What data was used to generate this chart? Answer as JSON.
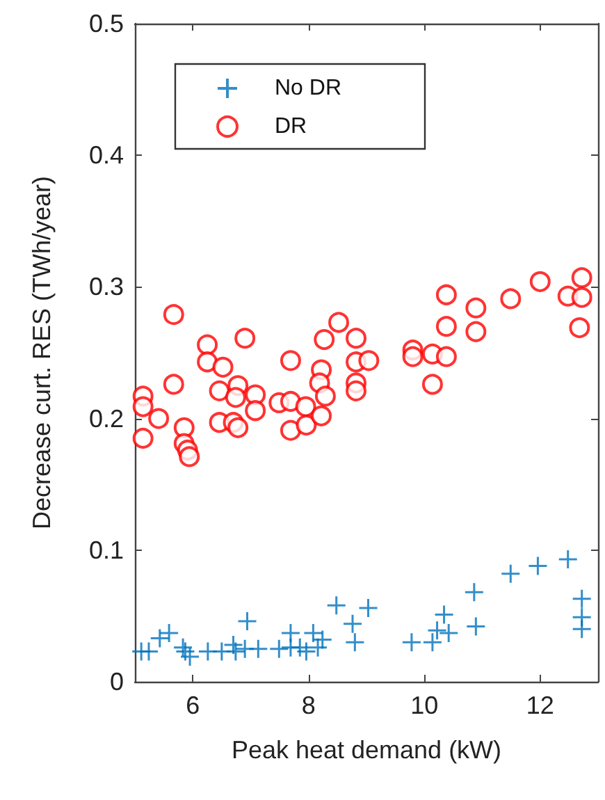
{
  "chart_data": {
    "type": "scatter",
    "xlabel": "Peak heat demand (kW)",
    "ylabel": "Decrease curt. RES (TWh/year)",
    "xlim": [
      5,
      13
    ],
    "xticks": [
      6,
      8,
      10,
      12
    ],
    "ylim": [
      0,
      0.5
    ],
    "yticks": [
      0,
      0.1,
      0.2,
      0.3,
      0.4,
      0.5
    ],
    "grid": false,
    "legend": "top left",
    "series": [
      {
        "name": "No DR",
        "color": "#0072bd",
        "marker": "cross",
        "x": [
          5.11,
          5.24,
          5.59,
          5.43,
          5.87,
          5.95,
          5.83,
          6.26,
          6.5,
          6.7,
          6.74,
          6.94,
          6.9,
          7.13,
          7.49,
          7.69,
          7.69,
          7.85,
          7.96,
          8.08,
          8.16,
          8.24,
          8.48,
          8.76,
          8.8,
          9.03,
          9.78,
          10.14,
          10.22,
          10.34,
          10.42,
          10.86,
          10.89,
          11.49,
          11.96,
          12.48,
          12.72,
          12.72,
          12.72
        ],
        "values": [
          0.023,
          0.023,
          0.037,
          0.033,
          0.023,
          0.019,
          0.026,
          0.023,
          0.023,
          0.028,
          0.023,
          0.046,
          0.025,
          0.025,
          0.025,
          0.037,
          0.026,
          0.026,
          0.023,
          0.037,
          0.026,
          0.032,
          0.058,
          0.044,
          0.03,
          0.056,
          0.03,
          0.03,
          0.039,
          0.051,
          0.037,
          0.068,
          0.042,
          0.082,
          0.088,
          0.093,
          0.063,
          0.049,
          0.04
        ]
      },
      {
        "name": "DR",
        "color": "#ff0000",
        "marker": "circle",
        "x": [
          5.14,
          5.14,
          5.14,
          5.41,
          5.67,
          5.67,
          5.85,
          5.85,
          5.91,
          5.94,
          6.25,
          6.25,
          6.52,
          6.46,
          6.46,
          6.7,
          6.78,
          6.78,
          6.9,
          6.74,
          7.08,
          7.08,
          7.49,
          7.69,
          7.69,
          7.69,
          7.95,
          7.96,
          8.22,
          8.19,
          8.29,
          8.22,
          8.27,
          8.52,
          8.82,
          8.82,
          8.82,
          8.82,
          9.04,
          9.8,
          9.8,
          10.14,
          10.14,
          10.38,
          10.38,
          10.38,
          10.89,
          10.89,
          11.49,
          12.0,
          12.48,
          12.72,
          12.72,
          12.68
        ],
        "values": [
          0.217,
          0.209,
          0.185,
          0.2,
          0.279,
          0.226,
          0.193,
          0.181,
          0.176,
          0.171,
          0.256,
          0.243,
          0.239,
          0.221,
          0.197,
          0.197,
          0.193,
          0.225,
          0.261,
          0.216,
          0.218,
          0.206,
          0.212,
          0.244,
          0.213,
          0.191,
          0.209,
          0.195,
          0.237,
          0.227,
          0.217,
          0.202,
          0.26,
          0.273,
          0.261,
          0.243,
          0.227,
          0.221,
          0.244,
          0.252,
          0.247,
          0.249,
          0.226,
          0.294,
          0.27,
          0.247,
          0.284,
          0.266,
          0.291,
          0.304,
          0.293,
          0.307,
          0.292,
          0.269
        ]
      }
    ]
  }
}
